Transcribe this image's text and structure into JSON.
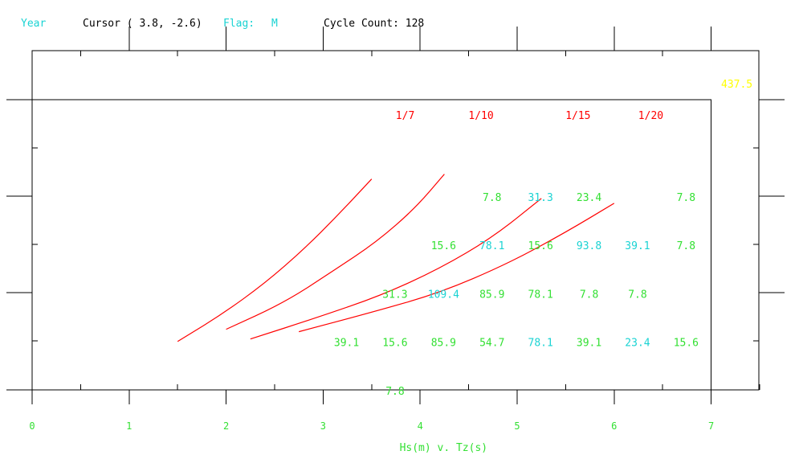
{
  "header": {
    "year_label": "Year",
    "cursor_text": "Cursor ( 3.8, -2.6)",
    "flag_label": "Flag:",
    "flag_value": "M",
    "cycle_count_text": "Cycle Count: 128"
  },
  "colors": {
    "curve": "#ff0000",
    "value_green": "#33e033",
    "value_cyan": "#1ad3d3",
    "total": "#ffff00",
    "frame": "#000000",
    "tick_label": "#33e033"
  },
  "chart_data": {
    "type": "scatter",
    "xlabel": "Hs(m) v. Tz(s)",
    "xlim": [
      0,
      7.5
    ],
    "ylim": [
      -0.3,
      6.3
    ],
    "x_ticks": [
      0,
      1,
      2,
      3,
      4,
      5,
      6,
      7
    ],
    "total_label": "437.5",
    "steepness_curves": [
      {
        "label": "1/7",
        "points": [
          [
            1.5,
            1
          ],
          [
            1.95,
            1.55
          ],
          [
            2.4,
            2.2
          ],
          [
            2.8,
            2.9
          ],
          [
            3.15,
            3.6
          ],
          [
            3.5,
            4.35
          ]
        ]
      },
      {
        "label": "1/10",
        "points": [
          [
            2.0,
            1.25
          ],
          [
            2.6,
            1.8
          ],
          [
            3.1,
            2.45
          ],
          [
            3.55,
            3.05
          ],
          [
            3.95,
            3.75
          ],
          [
            4.25,
            4.45
          ]
        ]
      },
      {
        "label": "1/15",
        "points": [
          [
            2.25,
            1.05
          ],
          [
            2.95,
            1.5
          ],
          [
            3.6,
            1.95
          ],
          [
            4.2,
            2.5
          ],
          [
            4.75,
            3.15
          ],
          [
            5.25,
            3.95
          ],
          [
            5.25,
            3.95
          ]
        ]
      },
      {
        "label": "1/20",
        "points": [
          [
            2.75,
            1.2
          ],
          [
            3.5,
            1.6
          ],
          [
            4.2,
            2.0
          ],
          [
            4.9,
            2.6
          ],
          [
            5.5,
            3.25
          ],
          [
            6.0,
            3.85
          ]
        ]
      }
    ],
    "cells": [
      {
        "x": 4.7,
        "y": 4.0,
        "value": "7.8",
        "color": "green"
      },
      {
        "x": 5.2,
        "y": 4.0,
        "value": "31.3",
        "color": "cyan"
      },
      {
        "x": 5.7,
        "y": 4.0,
        "value": "23.4",
        "color": "green"
      },
      {
        "x": 6.7,
        "y": 4.0,
        "value": "7.8",
        "color": "green"
      },
      {
        "x": 4.2,
        "y": 3.0,
        "value": "15.6",
        "color": "green"
      },
      {
        "x": 4.7,
        "y": 3.0,
        "value": "78.1",
        "color": "cyan"
      },
      {
        "x": 5.2,
        "y": 3.0,
        "value": "15.6",
        "color": "green"
      },
      {
        "x": 5.7,
        "y": 3.0,
        "value": "93.8",
        "color": "cyan"
      },
      {
        "x": 6.2,
        "y": 3.0,
        "value": "39.1",
        "color": "cyan"
      },
      {
        "x": 6.7,
        "y": 3.0,
        "value": "7.8",
        "color": "green"
      },
      {
        "x": 3.7,
        "y": 2.0,
        "value": "31.3",
        "color": "green"
      },
      {
        "x": 4.2,
        "y": 2.0,
        "value": "109.4",
        "color": "cyan"
      },
      {
        "x": 4.7,
        "y": 2.0,
        "value": "85.9",
        "color": "green"
      },
      {
        "x": 5.2,
        "y": 2.0,
        "value": "78.1",
        "color": "green"
      },
      {
        "x": 5.7,
        "y": 2.0,
        "value": "7.8",
        "color": "green"
      },
      {
        "x": 6.2,
        "y": 2.0,
        "value": "7.8",
        "color": "green"
      },
      {
        "x": 3.2,
        "y": 1.0,
        "value": "39.1",
        "color": "green"
      },
      {
        "x": 3.7,
        "y": 1.0,
        "value": "15.6",
        "color": "green"
      },
      {
        "x": 4.2,
        "y": 1.0,
        "value": "85.9",
        "color": "green"
      },
      {
        "x": 4.7,
        "y": 1.0,
        "value": "54.7",
        "color": "green"
      },
      {
        "x": 5.2,
        "y": 1.0,
        "value": "78.1",
        "color": "cyan"
      },
      {
        "x": 5.7,
        "y": 1.0,
        "value": "39.1",
        "color": "green"
      },
      {
        "x": 6.2,
        "y": 1.0,
        "value": "23.4",
        "color": "cyan"
      },
      {
        "x": 6.7,
        "y": 1.0,
        "value": "15.6",
        "color": "green"
      },
      {
        "x": 3.7,
        "y": 0.0,
        "value": "7.8",
        "color": "green"
      }
    ]
  }
}
